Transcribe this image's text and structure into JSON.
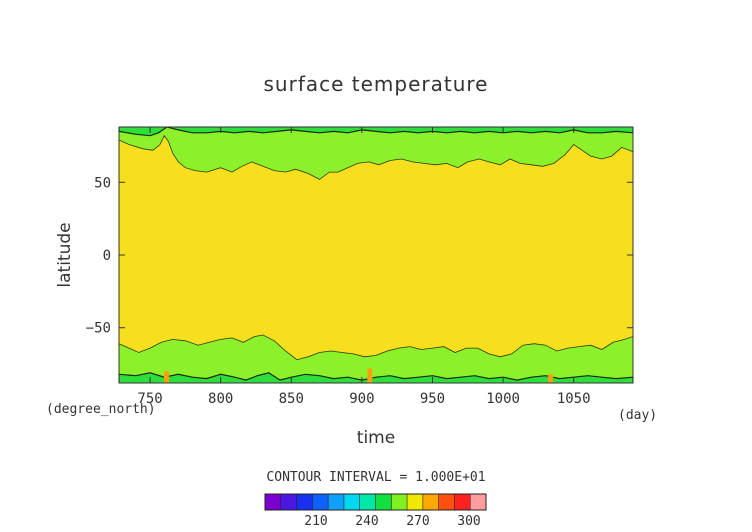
{
  "chart_data": {
    "type": "heatmap",
    "title": "surface temperature",
    "xlabel": "time",
    "ylabel": "latitude",
    "x_unit": "(day)",
    "y_unit": "(degree_north)",
    "xlim": [
      728,
      1092
    ],
    "ylim": [
      -88,
      88
    ],
    "x_ticks": [
      750,
      800,
      850,
      900,
      950,
      1000,
      1050
    ],
    "y_ticks": [
      50,
      0,
      -50
    ],
    "x_tick_labels": [
      "750",
      "800",
      "850",
      "900",
      "950",
      "1000",
      "1050"
    ],
    "y_tick_labels": [
      "50",
      "0",
      "−50"
    ],
    "contour_interval_text": "CONTOUR INTERVAL = 1.000E+01",
    "colorbar": {
      "levels": [
        180,
        190,
        200,
        210,
        220,
        230,
        240,
        250,
        260,
        270,
        280,
        290,
        300,
        310
      ],
      "tick_labels": [
        "210",
        "240",
        "270",
        "300"
      ],
      "tick_values": [
        210,
        240,
        270,
        300
      ],
      "colors": [
        "#7a00d0",
        "#4a18e0",
        "#1a30f0",
        "#1060ff",
        "#10a0ff",
        "#00d8f0",
        "#00e8a8",
        "#10e040",
        "#80f020",
        "#f0e800",
        "#ffa800",
        "#ff5010",
        "#ff2020",
        "#ff9c9c"
      ]
    },
    "bands": {
      "colors": {
        "tropics": "#f7df1e",
        "mid": "#8cf02a",
        "polar": "#2ede3a",
        "edge": "#fc9f0c"
      },
      "north_mid_boundary": [
        [
          728,
          79
        ],
        [
          735,
          76
        ],
        [
          745,
          73
        ],
        [
          752,
          72
        ],
        [
          757,
          76
        ],
        [
          760,
          82
        ],
        [
          763,
          78
        ],
        [
          766,
          70
        ],
        [
          770,
          64
        ],
        [
          775,
          60
        ],
        [
          782,
          58
        ],
        [
          790,
          57
        ],
        [
          800,
          60
        ],
        [
          808,
          57
        ],
        [
          815,
          61
        ],
        [
          822,
          64
        ],
        [
          830,
          61
        ],
        [
          838,
          58
        ],
        [
          846,
          57
        ],
        [
          853,
          59
        ],
        [
          862,
          56
        ],
        [
          870,
          52
        ],
        [
          877,
          57
        ],
        [
          883,
          57
        ],
        [
          890,
          60
        ],
        [
          897,
          63
        ],
        [
          905,
          64
        ],
        [
          912,
          62
        ],
        [
          920,
          65
        ],
        [
          928,
          66
        ],
        [
          936,
          64
        ],
        [
          944,
          63
        ],
        [
          952,
          62
        ],
        [
          960,
          63
        ],
        [
          968,
          60
        ],
        [
          975,
          64
        ],
        [
          983,
          66
        ],
        [
          990,
          64
        ],
        [
          998,
          62
        ],
        [
          1005,
          66
        ],
        [
          1012,
          63
        ],
        [
          1020,
          62
        ],
        [
          1028,
          61
        ],
        [
          1036,
          63
        ],
        [
          1044,
          69
        ],
        [
          1050,
          76
        ],
        [
          1056,
          72
        ],
        [
          1062,
          68
        ],
        [
          1070,
          66
        ],
        [
          1077,
          68
        ],
        [
          1084,
          74
        ],
        [
          1092,
          71
        ]
      ],
      "north_polar_boundary": [
        [
          728,
          85
        ],
        [
          740,
          83
        ],
        [
          750,
          82
        ],
        [
          756,
          84
        ],
        [
          762,
          88
        ],
        [
          770,
          86
        ],
        [
          780,
          84
        ],
        [
          790,
          84
        ],
        [
          800,
          85
        ],
        [
          810,
          84
        ],
        [
          820,
          85
        ],
        [
          830,
          84
        ],
        [
          840,
          85
        ],
        [
          850,
          86
        ],
        [
          860,
          85
        ],
        [
          870,
          84
        ],
        [
          880,
          85
        ],
        [
          890,
          84
        ],
        [
          900,
          86
        ],
        [
          910,
          85
        ],
        [
          920,
          84
        ],
        [
          930,
          85
        ],
        [
          940,
          84
        ],
        [
          950,
          85
        ],
        [
          960,
          84
        ],
        [
          970,
          85
        ],
        [
          980,
          84
        ],
        [
          990,
          85
        ],
        [
          1000,
          84
        ],
        [
          1010,
          85
        ],
        [
          1020,
          84
        ],
        [
          1030,
          85
        ],
        [
          1040,
          84
        ],
        [
          1050,
          86
        ],
        [
          1060,
          84
        ],
        [
          1070,
          84
        ],
        [
          1080,
          85
        ],
        [
          1092,
          84
        ]
      ],
      "south_mid_boundary": [
        [
          728,
          -61
        ],
        [
          735,
          -64
        ],
        [
          742,
          -67
        ],
        [
          750,
          -64
        ],
        [
          758,
          -60
        ],
        [
          766,
          -58
        ],
        [
          775,
          -59
        ],
        [
          784,
          -62
        ],
        [
          792,
          -60
        ],
        [
          800,
          -58
        ],
        [
          808,
          -57
        ],
        [
          816,
          -60
        ],
        [
          824,
          -56
        ],
        [
          830,
          -55
        ],
        [
          838,
          -59
        ],
        [
          846,
          -66
        ],
        [
          854,
          -72
        ],
        [
          862,
          -70
        ],
        [
          870,
          -67
        ],
        [
          878,
          -66
        ],
        [
          886,
          -67
        ],
        [
          894,
          -68
        ],
        [
          902,
          -70
        ],
        [
          910,
          -69
        ],
        [
          918,
          -66
        ],
        [
          926,
          -64
        ],
        [
          934,
          -63
        ],
        [
          942,
          -65
        ],
        [
          950,
          -64
        ],
        [
          958,
          -63
        ],
        [
          966,
          -67
        ],
        [
          974,
          -64
        ],
        [
          982,
          -64
        ],
        [
          990,
          -68
        ],
        [
          998,
          -70
        ],
        [
          1006,
          -68
        ],
        [
          1014,
          -62
        ],
        [
          1022,
          -61
        ],
        [
          1030,
          -62
        ],
        [
          1038,
          -66
        ],
        [
          1046,
          -64
        ],
        [
          1054,
          -63
        ],
        [
          1062,
          -62
        ],
        [
          1070,
          -65
        ],
        [
          1078,
          -60
        ],
        [
          1086,
          -58
        ],
        [
          1092,
          -56
        ]
      ],
      "south_polar_boundary": [
        [
          728,
          -82
        ],
        [
          740,
          -83
        ],
        [
          750,
          -81
        ],
        [
          760,
          -84
        ],
        [
          770,
          -82
        ],
        [
          780,
          -84
        ],
        [
          790,
          -85
        ],
        [
          800,
          -82
        ],
        [
          810,
          -84
        ],
        [
          818,
          -86
        ],
        [
          826,
          -83
        ],
        [
          834,
          -81
        ],
        [
          842,
          -86
        ],
        [
          850,
          -84
        ],
        [
          860,
          -82
        ],
        [
          870,
          -83
        ],
        [
          880,
          -85
        ],
        [
          890,
          -84
        ],
        [
          900,
          -86
        ],
        [
          910,
          -84
        ],
        [
          920,
          -83
        ],
        [
          930,
          -85
        ],
        [
          940,
          -84
        ],
        [
          950,
          -83
        ],
        [
          960,
          -85
        ],
        [
          970,
          -84
        ],
        [
          980,
          -83
        ],
        [
          990,
          -85
        ],
        [
          1000,
          -84
        ],
        [
          1010,
          -86
        ],
        [
          1020,
          -84
        ],
        [
          1030,
          -83
        ],
        [
          1040,
          -85
        ],
        [
          1050,
          -84
        ],
        [
          1060,
          -83
        ],
        [
          1070,
          -84
        ],
        [
          1080,
          -85
        ],
        [
          1092,
          -84
        ]
      ]
    }
  }
}
